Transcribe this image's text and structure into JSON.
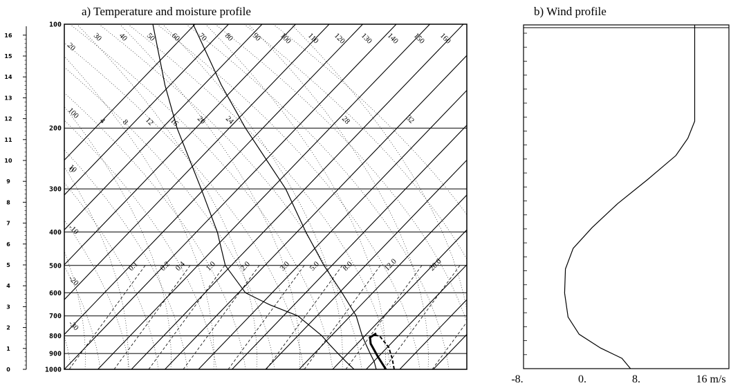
{
  "panel_a": {
    "title": "a) Temperature and moisture profile",
    "height_ticks": [
      "0",
      "1",
      "2",
      "3",
      "4",
      "5",
      "6",
      "7",
      "8",
      "9",
      "10",
      "11",
      "12",
      "13",
      "14",
      "15",
      "16"
    ],
    "pressure_ticks": [
      "100",
      "200",
      "300",
      "400",
      "500",
      "600",
      "700",
      "800",
      "900",
      "1000"
    ],
    "isotherm_labels": [
      "30",
      "40",
      "50",
      "60",
      "70",
      "80",
      "90",
      "100",
      "110",
      "120",
      "130",
      "140",
      "150",
      "160"
    ],
    "upper_labels": [
      "100",
      "4",
      "8",
      "12",
      "16",
      "20",
      "24",
      "28",
      "32"
    ],
    "left_labels": [
      "20",
      "10",
      "0",
      "-10",
      "-20",
      "-30"
    ],
    "mixing_ratio_labels": [
      "0.1",
      "0.2",
      "0.4",
      "1.0",
      "2.0",
      "3.0",
      "5.0",
      "8.0",
      "12.0",
      "20.0"
    ]
  },
  "panel_b": {
    "title": "b) Wind profile",
    "x_ticks": [
      "-8.",
      "0.",
      "8.",
      "16 m/s"
    ]
  },
  "chart_data": [
    {
      "type": "line",
      "title": "a) Temperature and moisture profile",
      "y_scale": "log-pressure",
      "pressure_levels_hPa": [
        100,
        200,
        300,
        400,
        500,
        600,
        700,
        800,
        900,
        1000
      ],
      "height_km_ticks": [
        0,
        1,
        2,
        3,
        4,
        5,
        6,
        7,
        8,
        9,
        10,
        11,
        12,
        13,
        14,
        15,
        16
      ],
      "series": [
        {
          "p": [
            1000,
            950,
            900,
            850,
            800,
            700,
            600,
            500,
            400,
            300,
            200,
            150,
            100
          ],
          "x_rel": [
            0.775,
            0.77,
            0.76,
            0.75,
            0.74,
            0.725,
            0.69,
            0.645,
            0.6,
            0.55,
            0.45,
            0.39,
            0.32
          ]
        },
        {
          "p": [
            1000,
            950,
            900,
            850,
            800,
            700,
            650,
            600,
            500,
            400,
            300,
            200,
            150,
            100
          ],
          "x_rel": [
            0.72,
            0.7,
            0.68,
            0.66,
            0.64,
            0.58,
            0.51,
            0.45,
            0.4,
            0.38,
            0.34,
            0.28,
            0.25,
            0.22
          ]
        }
      ]
    },
    {
      "type": "line",
      "title": "b) Wind profile",
      "xlim": [
        -8,
        16
      ],
      "x_ticks": [
        -8,
        0,
        8,
        16
      ],
      "series": [
        {
          "points": [
            [
              4.5,
              0.0
            ],
            [
              3.5,
              0.03
            ],
            [
              1,
              0.06
            ],
            [
              -1.5,
              0.1
            ],
            [
              -2.8,
              0.15
            ],
            [
              -3.2,
              0.22
            ],
            [
              -3.1,
              0.29
            ],
            [
              -2.2,
              0.35
            ],
            [
              0,
              0.41
            ],
            [
              3,
              0.48
            ],
            [
              6.5,
              0.55
            ],
            [
              9.8,
              0.62
            ],
            [
              11.2,
              0.67
            ],
            [
              12.0,
              0.72
            ],
            [
              12.0,
              1.0
            ]
          ]
        }
      ]
    }
  ]
}
